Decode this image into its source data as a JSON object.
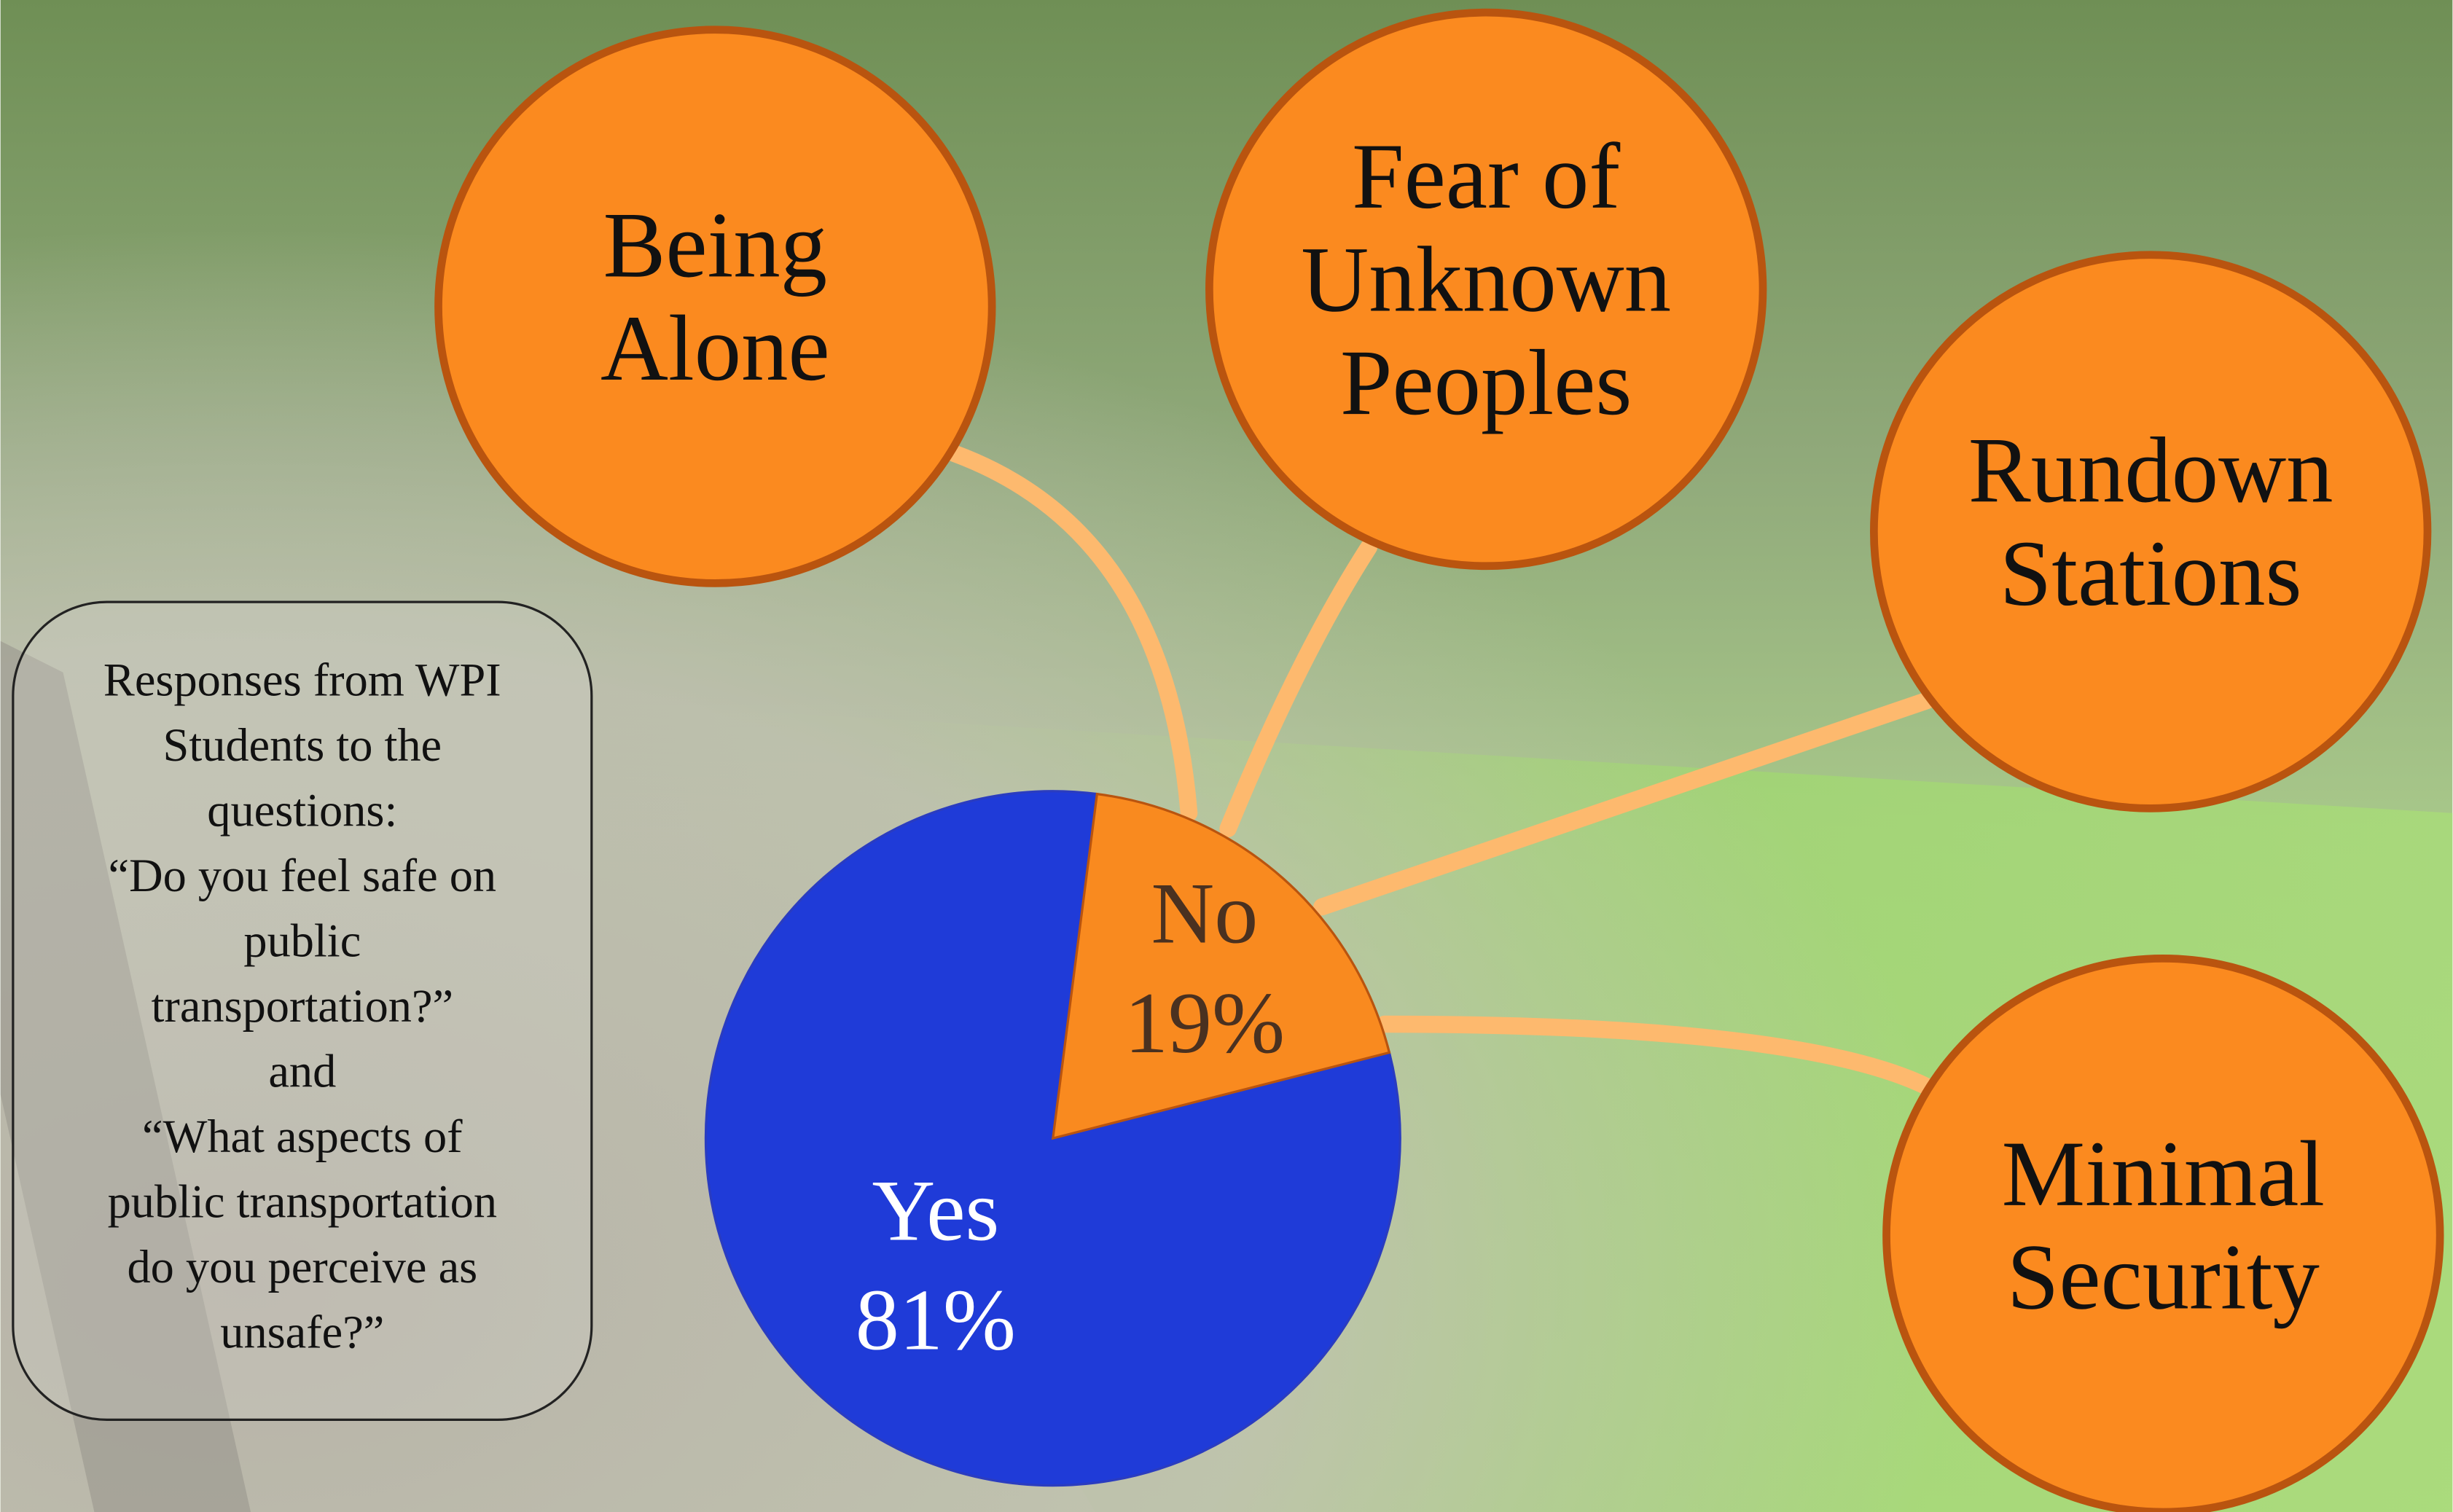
{
  "chart_data": {
    "type": "pie",
    "categories": [
      "Yes",
      "No"
    ],
    "values": [
      81,
      19
    ],
    "value_labels": [
      "81%",
      "19%"
    ],
    "colors": [
      "#1f3bd8",
      "#f98a1f"
    ],
    "annotations": [
      {
        "lines": [
          "Being",
          "Alone"
        ]
      },
      {
        "lines": [
          "Fear of",
          "Unknown",
          "Peoples"
        ]
      },
      {
        "lines": [
          "Rundown",
          "Stations"
        ]
      },
      {
        "lines": [
          "Minimal",
          "Security"
        ]
      }
    ],
    "note": [
      "Responses from WPI",
      "Students to the",
      "questions:",
      "“Do you feel safe on",
      "public",
      "transportation?”",
      "and",
      "“What aspects of",
      "public transportation",
      "do you perceive as",
      "unsafe?”"
    ]
  }
}
